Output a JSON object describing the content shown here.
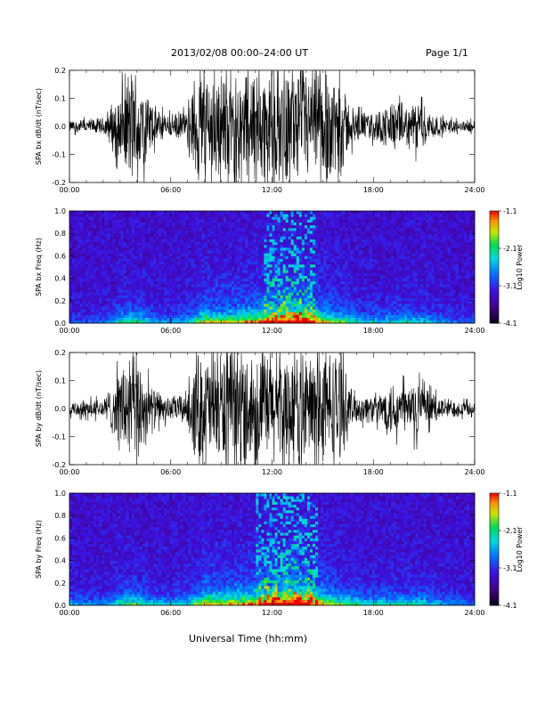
{
  "header": {
    "title": "2013/02/08  00:00–24:00 UT",
    "page": "Page 1/1",
    "xlabel": "Universal Time (hh:mm)"
  },
  "chart_data": [
    {
      "type": "line",
      "ylabel": "SPA bx dB/dt (nT/sec)",
      "xlim": [
        0,
        24
      ],
      "ylim": [
        -0.2,
        0.2
      ],
      "x_ticks": [
        "00:00",
        "06:00",
        "12:00",
        "18:00",
        "24:00"
      ],
      "y_ticks": [
        "-0.2",
        "-0.1",
        "0.0",
        "0.1",
        "0.2"
      ],
      "envelope_hours": [
        0,
        1,
        2,
        2.7,
        3,
        3.5,
        4,
        4.5,
        5,
        5.5,
        6,
        6.5,
        7,
        7.5,
        8,
        9,
        10,
        11,
        12,
        13,
        14,
        15,
        15.5,
        16,
        16.5,
        17,
        18,
        18.5,
        19,
        19.5,
        20,
        20.5,
        21,
        22,
        23,
        24
      ],
      "envelope_amplitude": [
        0.02,
        0.025,
        0.03,
        0.1,
        0.12,
        0.2,
        0.2,
        0.14,
        0.07,
        0.05,
        0.04,
        0.05,
        0.05,
        0.2,
        0.2,
        0.2,
        0.2,
        0.2,
        0.2,
        0.2,
        0.2,
        0.2,
        0.2,
        0.2,
        0.09,
        0.05,
        0.05,
        0.06,
        0.09,
        0.08,
        0.07,
        0.09,
        0.07,
        0.03,
        0.02,
        0.02
      ]
    },
    {
      "type": "heatmap",
      "ylabel": "SPA bx Freq (Hz)",
      "xlim": [
        0,
        24
      ],
      "ylim": [
        0,
        1
      ],
      "x_ticks": [
        "00:00",
        "06:00",
        "12:00",
        "18:00",
        "24:00"
      ],
      "y_ticks": [
        "0.0",
        "0.2",
        "0.4",
        "0.6",
        "0.8",
        "1.0"
      ],
      "colorbar": {
        "label": "Log10 Power",
        "ticks": [
          "-1.1",
          "-2.1",
          "-3.1",
          "-4.1"
        ],
        "range": [
          -4.1,
          -1.1
        ]
      },
      "activity_hours": [
        0,
        1,
        2,
        3,
        4,
        5,
        6,
        7,
        8,
        9,
        10,
        11,
        12,
        13,
        14,
        15,
        16,
        17,
        18,
        19,
        20,
        21,
        22,
        23,
        24
      ],
      "activity_level": [
        0.2,
        0.2,
        0.25,
        0.45,
        0.55,
        0.35,
        0.3,
        0.4,
        0.7,
        0.65,
        0.7,
        0.75,
        0.85,
        0.9,
        0.95,
        0.7,
        0.6,
        0.45,
        0.4,
        0.4,
        0.45,
        0.4,
        0.3,
        0.25,
        0.2
      ]
    },
    {
      "type": "line",
      "ylabel": "SPA by dB/dt (nT/sec)",
      "xlim": [
        0,
        24
      ],
      "ylim": [
        -0.2,
        0.2
      ],
      "x_ticks": [
        "00:00",
        "06:00",
        "12:00",
        "18:00",
        "24:00"
      ],
      "y_ticks": [
        "-0.2",
        "-0.1",
        "0.0",
        "0.1",
        "0.2"
      ],
      "envelope_hours": [
        0,
        1,
        2,
        2.7,
        3,
        3.5,
        4,
        4.5,
        5,
        5.5,
        6,
        6.5,
        7,
        7.5,
        8,
        9,
        10,
        11,
        12,
        13,
        14,
        15,
        15.5,
        16,
        16.5,
        17,
        18,
        18.5,
        19,
        19.5,
        20,
        20.5,
        21,
        22,
        23,
        24
      ],
      "envelope_amplitude": [
        0.025,
        0.03,
        0.035,
        0.1,
        0.15,
        0.2,
        0.2,
        0.12,
        0.07,
        0.05,
        0.04,
        0.05,
        0.06,
        0.2,
        0.2,
        0.2,
        0.2,
        0.2,
        0.2,
        0.2,
        0.2,
        0.2,
        0.2,
        0.2,
        0.09,
        0.05,
        0.05,
        0.06,
        0.1,
        0.09,
        0.08,
        0.11,
        0.07,
        0.04,
        0.03,
        0.02
      ]
    },
    {
      "type": "heatmap",
      "ylabel": "SPA by Freq (Hz)",
      "xlim": [
        0,
        24
      ],
      "ylim": [
        0,
        1
      ],
      "x_ticks": [
        "00:00",
        "06:00",
        "12:00",
        "18:00",
        "24:00"
      ],
      "y_ticks": [
        "0.0",
        "0.2",
        "0.4",
        "0.6",
        "0.8",
        "1.0"
      ],
      "colorbar": {
        "label": "Log10 Power",
        "ticks": [
          "-1.1",
          "-2.1",
          "-3.1",
          "-4.1"
        ],
        "range": [
          -4.1,
          -1.1
        ]
      },
      "activity_hours": [
        0,
        1,
        2,
        3,
        4,
        5,
        6,
        7,
        8,
        9,
        10,
        11,
        12,
        13,
        14,
        15,
        16,
        17,
        18,
        19,
        20,
        21,
        22,
        23,
        24
      ],
      "activity_level": [
        0.35,
        0.3,
        0.3,
        0.5,
        0.55,
        0.4,
        0.35,
        0.45,
        0.75,
        0.7,
        0.75,
        0.8,
        0.9,
        0.95,
        0.95,
        0.75,
        0.6,
        0.5,
        0.45,
        0.45,
        0.5,
        0.45,
        0.35,
        0.3,
        0.25
      ]
    }
  ]
}
